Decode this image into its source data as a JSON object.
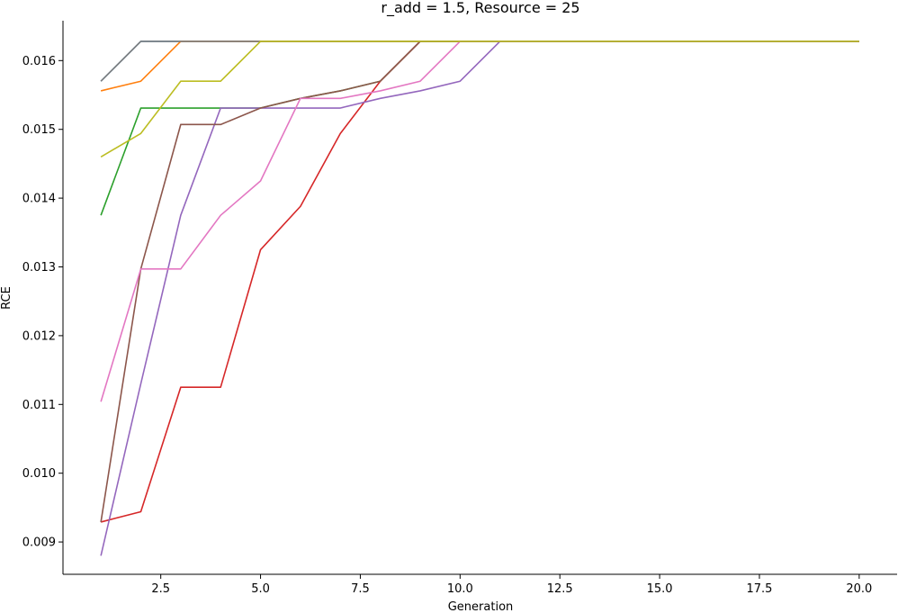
{
  "chart_data": {
    "type": "line",
    "title": "r_add = 1.5, Resource = 25",
    "xlabel": "Generation",
    "ylabel": "RCE",
    "xlim": [
      0.05,
      20.95
    ],
    "ylim": [
      0.00853,
      0.01658
    ],
    "xticks": [
      2.5,
      5.0,
      7.5,
      10.0,
      12.5,
      15.0,
      17.5,
      20.0
    ],
    "xtick_labels": [
      "2.5",
      "5.0",
      "7.5",
      "10.0",
      "12.5",
      "15.0",
      "17.5",
      "20.0"
    ],
    "yticks": [
      0.009,
      0.01,
      0.011,
      0.012,
      0.013,
      0.014,
      0.015,
      0.016
    ],
    "ytick_labels": [
      "0.009",
      "0.010",
      "0.011",
      "0.012",
      "0.013",
      "0.014",
      "0.015",
      "0.016"
    ],
    "grid": false,
    "legend": "none",
    "x": [
      1,
      2,
      3,
      4,
      5,
      6,
      7,
      8,
      9,
      10,
      11,
      12,
      13,
      14,
      15,
      16,
      17,
      18,
      19,
      20
    ],
    "series": [
      {
        "color": "#1f77b4",
        "values": [
          0.0157,
          0.01628,
          0.01628,
          0.01628,
          0.01628,
          0.01628,
          0.01628,
          0.01628,
          0.01628,
          0.01628,
          0.01628,
          0.01628,
          0.01628,
          0.01628,
          0.01628,
          0.01628,
          0.01628,
          0.01628,
          0.01628,
          0.01628
        ]
      },
      {
        "color": "#ff7f0e",
        "values": [
          0.01556,
          0.0157,
          0.01628,
          0.01628,
          0.01628,
          0.01628,
          0.01628,
          0.01628,
          0.01628,
          0.01628,
          0.01628,
          0.01628,
          0.01628,
          0.01628,
          0.01628,
          0.01628,
          0.01628,
          0.01628,
          0.01628,
          0.01628
        ]
      },
      {
        "color": "#2ca02c",
        "values": [
          0.01375,
          0.01531,
          0.01531,
          0.01531,
          0.01531,
          0.01545,
          0.01556,
          0.0157,
          0.01628,
          0.01628,
          0.01628,
          0.01628,
          0.01628,
          0.01628,
          0.01628,
          0.01628,
          0.01628,
          0.01628,
          0.01628,
          0.01628
        ]
      },
      {
        "color": "#d62728",
        "values": [
          0.00929,
          0.00944,
          0.01125,
          0.01125,
          0.01325,
          0.01388,
          0.01494,
          0.0157,
          0.01628,
          0.01628,
          0.01628,
          0.01628,
          0.01628,
          0.01628,
          0.01628,
          0.01628,
          0.01628,
          0.01628,
          0.01628,
          0.01628
        ]
      },
      {
        "color": "#9467bd",
        "values": [
          0.0088,
          0.0113,
          0.01375,
          0.01531,
          0.01531,
          0.01531,
          0.01531,
          0.01545,
          0.01556,
          0.0157,
          0.01628,
          0.01628,
          0.01628,
          0.01628,
          0.01628,
          0.01628,
          0.01628,
          0.01628,
          0.01628,
          0.01628
        ]
      },
      {
        "color": "#8c564b",
        "values": [
          0.00929,
          0.01297,
          0.01507,
          0.01507,
          0.01531,
          0.01545,
          0.01556,
          0.0157,
          0.01628,
          0.01628,
          0.01628,
          0.01628,
          0.01628,
          0.01628,
          0.01628,
          0.01628,
          0.01628,
          0.01628,
          0.01628,
          0.01628
        ]
      },
      {
        "color": "#e377c2",
        "values": [
          0.01104,
          0.01297,
          0.01297,
          0.01375,
          0.01425,
          0.01545,
          0.01545,
          0.01556,
          0.0157,
          0.01628,
          0.01628,
          0.01628,
          0.01628,
          0.01628,
          0.01628,
          0.01628,
          0.01628,
          0.01628,
          0.01628,
          0.01628
        ]
      },
      {
        "color": "#7f7f7f",
        "values": [
          0.0157,
          0.01628,
          0.01628,
          0.01628,
          0.01628,
          0.01628,
          0.01628,
          0.01628,
          0.01628,
          0.01628,
          0.01628,
          0.01628,
          0.01628,
          0.01628,
          0.01628,
          0.01628,
          0.01628,
          0.01628,
          0.01628,
          0.01628
        ]
      },
      {
        "color": "#bcbd22",
        "values": [
          0.0146,
          0.01494,
          0.0157,
          0.0157,
          0.01628,
          0.01628,
          0.01628,
          0.01628,
          0.01628,
          0.01628,
          0.01628,
          0.01628,
          0.01628,
          0.01628,
          0.01628,
          0.01628,
          0.01628,
          0.01628,
          0.01628,
          0.01628
        ]
      }
    ]
  }
}
